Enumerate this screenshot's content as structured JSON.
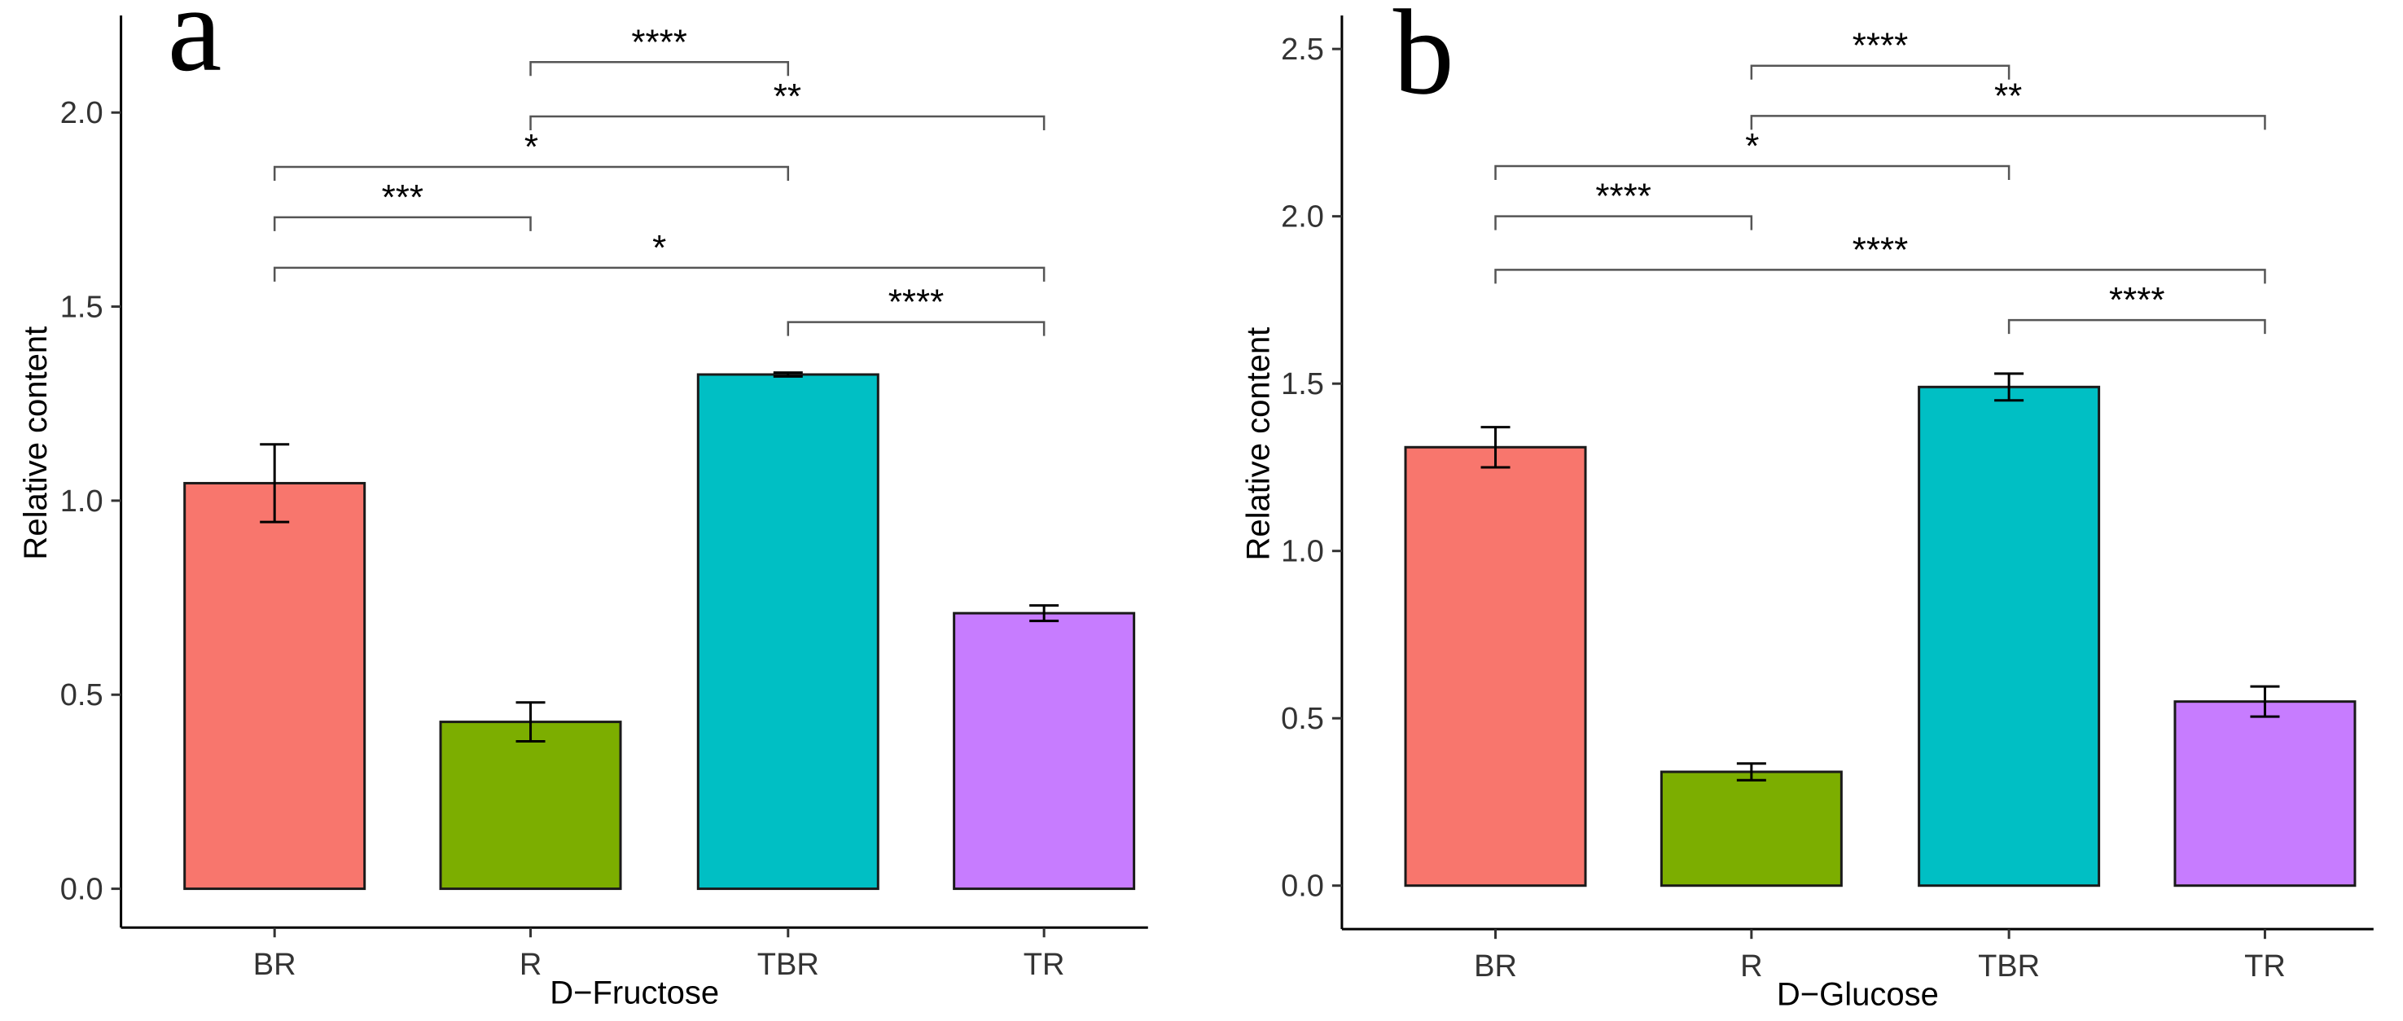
{
  "chart_data": [
    {
      "type": "bar",
      "panel_label": "a",
      "title": "",
      "xlabel": "D−Fructose",
      "ylabel": "Relative content",
      "categories": [
        "BR",
        "R",
        "TBR",
        "TR"
      ],
      "values": [
        1.045,
        0.43,
        1.325,
        0.71
      ],
      "errors": [
        0.1,
        0.05,
        0.005,
        0.02
      ],
      "colors": [
        "#F8766D",
        "#7CAE00",
        "#00BFC4",
        "#C77CFF"
      ],
      "ylim": [
        -0.1,
        2.25
      ],
      "yticks": [
        0.0,
        0.5,
        1.0,
        1.5,
        2.0
      ],
      "ytick_labels": [
        "0.0",
        "0.5",
        "1.0",
        "1.5",
        "2.0"
      ],
      "grid": false,
      "significance": [
        {
          "from": "R",
          "to": "TBR",
          "y": 2.13,
          "label": "****"
        },
        {
          "from": "R",
          "to": "TR",
          "y": 1.99,
          "label": "**"
        },
        {
          "from": "BR",
          "to": "TBR",
          "y": 1.86,
          "label": "*"
        },
        {
          "from": "BR",
          "to": "R",
          "y": 1.73,
          "label": "***"
        },
        {
          "from": "BR",
          "to": "TR",
          "y": 1.6,
          "label": "*"
        },
        {
          "from": "TBR",
          "to": "TR",
          "y": 1.46,
          "label": "****"
        }
      ]
    },
    {
      "type": "bar",
      "panel_label": "b",
      "title": "",
      "xlabel": "D−Glucose",
      "ylabel": "Relative content",
      "categories": [
        "BR",
        "R",
        "TBR",
        "TR"
      ],
      "values": [
        1.31,
        0.34,
        1.49,
        0.55
      ],
      "errors": [
        0.06,
        0.025,
        0.04,
        0.045
      ],
      "colors": [
        "#F8766D",
        "#7CAE00",
        "#00BFC4",
        "#C77CFF"
      ],
      "ylim": [
        -0.13,
        2.6
      ],
      "yticks": [
        0.0,
        0.5,
        1.0,
        1.5,
        2.0,
        2.5
      ],
      "ytick_labels": [
        "0.0",
        "0.5",
        "1.0",
        "1.5",
        "2.0",
        "2.5"
      ],
      "grid": false,
      "significance": [
        {
          "from": "R",
          "to": "TBR",
          "y": 2.45,
          "label": "****"
        },
        {
          "from": "R",
          "to": "TR",
          "y": 2.3,
          "label": "**"
        },
        {
          "from": "BR",
          "to": "TBR",
          "y": 2.15,
          "label": "*"
        },
        {
          "from": "BR",
          "to": "R",
          "y": 2.0,
          "label": "****"
        },
        {
          "from": "BR",
          "to": "TR",
          "y": 1.84,
          "label": "****"
        },
        {
          "from": "TBR",
          "to": "TR",
          "y": 1.69,
          "label": "****"
        }
      ]
    }
  ]
}
